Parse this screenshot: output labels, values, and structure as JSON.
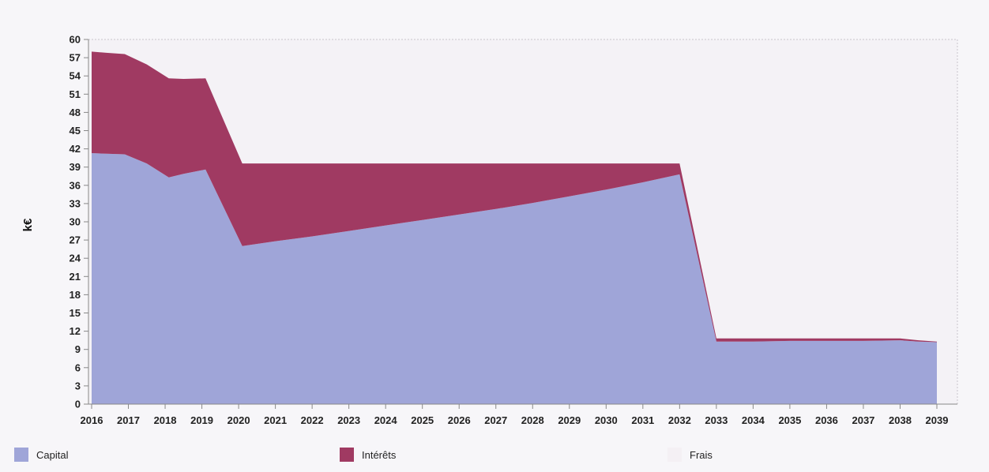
{
  "chart_data": {
    "type": "area",
    "stacked": true,
    "ylabel": "k€",
    "xlabel": "",
    "title": "",
    "ylim": [
      0,
      60
    ],
    "yticks": [
      0,
      3,
      6,
      9,
      12,
      15,
      18,
      21,
      24,
      27,
      30,
      33,
      36,
      39,
      42,
      45,
      48,
      51,
      54,
      57,
      60
    ],
    "xlim": [
      2016,
      2039
    ],
    "xticks": [
      "2016",
      "2017",
      "2018",
      "2019",
      "2020",
      "2021",
      "2022",
      "2023",
      "2024",
      "2025",
      "2026",
      "2027",
      "2028",
      "2029",
      "2030",
      "2031",
      "2032",
      "2033",
      "2034",
      "2035",
      "2036",
      "2037",
      "2038",
      "2039"
    ],
    "grid": false,
    "legend_position": "bottom",
    "x": [
      2016,
      2016.4,
      2016.9,
      2017.5,
      2018.1,
      2018.5,
      2019.1,
      2020.1,
      2021,
      2022,
      2023,
      2024,
      2025,
      2026,
      2027,
      2028,
      2029,
      2030,
      2031,
      2032,
      2033,
      2034,
      2035,
      2036,
      2037,
      2038,
      2038.5,
      2039
    ],
    "series": [
      {
        "name": "Capital",
        "color": "#9fa5d8",
        "values": [
          41.3,
          41.2,
          41.1,
          39.6,
          37.3,
          37.9,
          38.6,
          26.0,
          26.8,
          27.6,
          28.5,
          29.4,
          30.3,
          31.2,
          32.1,
          33.1,
          34.2,
          35.3,
          36.5,
          37.8,
          10.3,
          10.3,
          10.4,
          10.4,
          10.4,
          10.5,
          10.3,
          10.2
        ]
      },
      {
        "name": "Intérêts",
        "color": "#a03a62",
        "values": [
          16.7,
          16.6,
          16.5,
          16.3,
          16.3,
          15.6,
          15.0,
          13.6,
          12.8,
          12.0,
          11.1,
          10.2,
          9.3,
          8.4,
          7.5,
          6.5,
          5.4,
          4.3,
          3.1,
          1.8,
          0.5,
          0.5,
          0.4,
          0.4,
          0.4,
          0.3,
          0.2,
          0.1
        ]
      },
      {
        "name": "Frais",
        "color": "#f4f0f4",
        "values": [
          0,
          0,
          0,
          0,
          0,
          0,
          0,
          0,
          0,
          0,
          0,
          0,
          0,
          0,
          0,
          0,
          0,
          0,
          0,
          0,
          0,
          0,
          0,
          0,
          0,
          0,
          0,
          0
        ]
      }
    ]
  },
  "colors": {
    "plot_background": "#f4f2f6",
    "axis": "#888888"
  }
}
